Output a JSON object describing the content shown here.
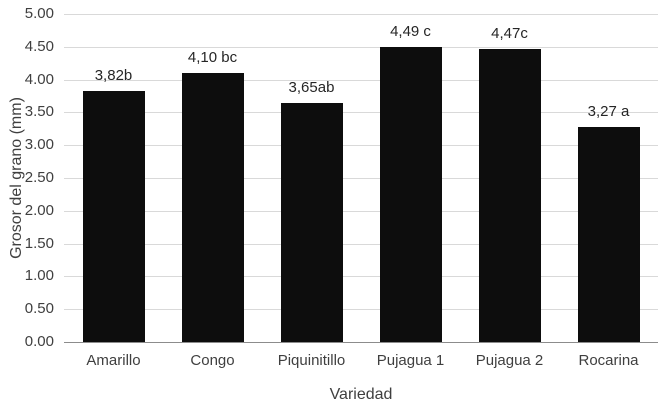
{
  "chart_data": {
    "type": "bar",
    "title": "",
    "xlabel": "Variedad",
    "ylabel": "Grosor del grano (mm)",
    "categories": [
      "Amarillo",
      "Congo",
      "Piquinitillo",
      "Pujagua 1",
      "Pujagua 2",
      "Rocarina"
    ],
    "values": [
      3.82,
      4.1,
      3.65,
      4.49,
      4.47,
      3.27
    ],
    "bar_labels": [
      "3,82b",
      "4,10 bc",
      "3,65ab",
      "4,49 c",
      "4,47c",
      "3,27 a"
    ],
    "ylim": [
      0,
      5
    ],
    "ytick_step": 0.5,
    "ytick_labels": [
      "0.00",
      "0.50",
      "1.00",
      "1.50",
      "2.00",
      "2.50",
      "3.00",
      "3.50",
      "4.00",
      "4.50",
      "5.00"
    ],
    "grid": true,
    "legend": "none",
    "bar_color": "#0d0d0d",
    "gridline_color": "#d9d9d9",
    "axis_line_color": "#8c8c8c",
    "text_color": "#3f3f3f"
  }
}
